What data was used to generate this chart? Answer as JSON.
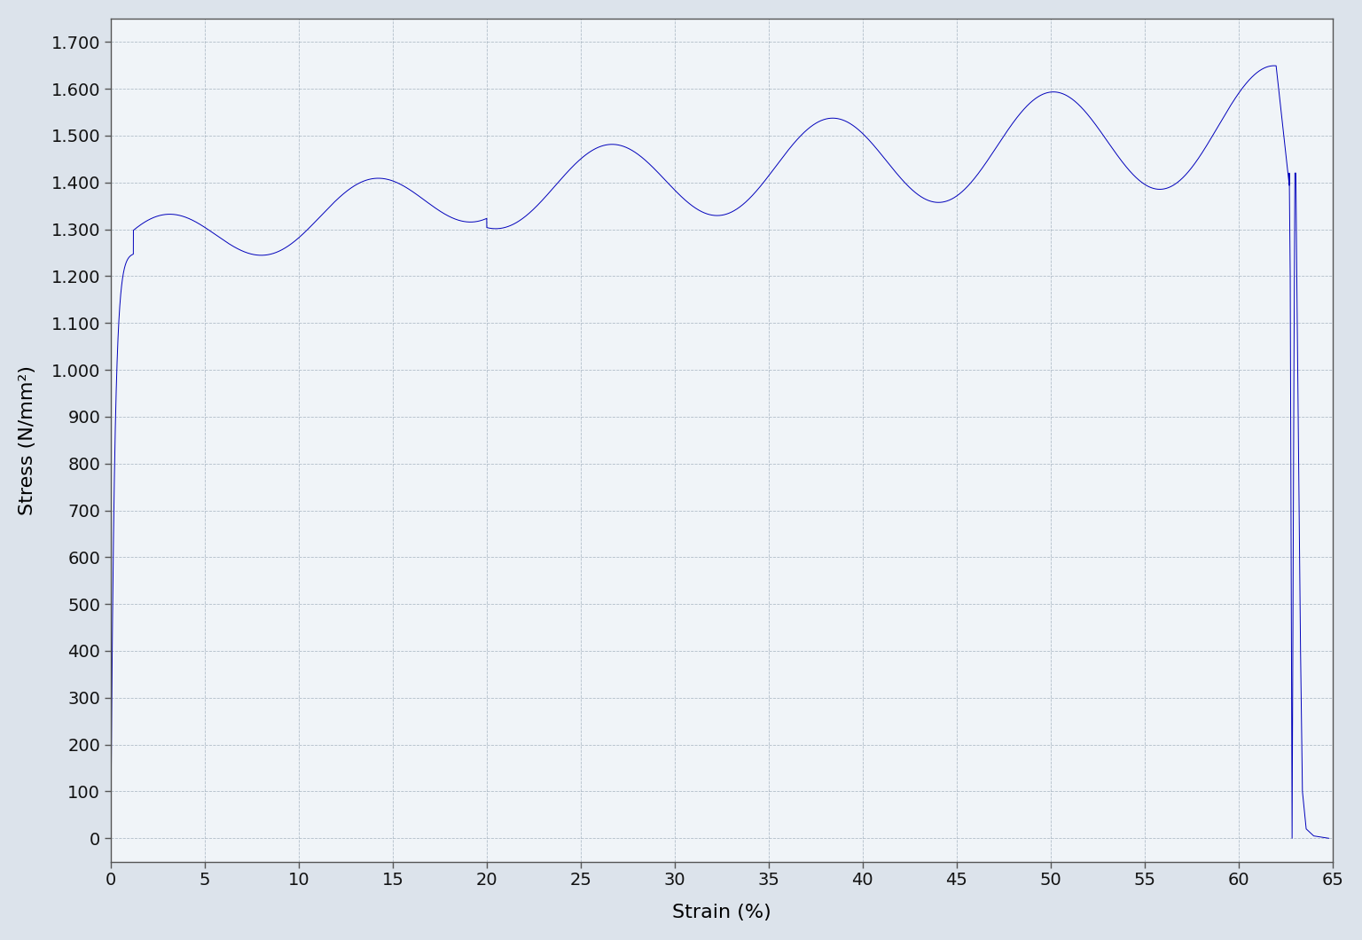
{
  "xlabel": "Strain (%)",
  "ylabel": "Stress (N/mm²)",
  "xlim": [
    0,
    65
  ],
  "ylim": [
    -50,
    1750
  ],
  "xticks": [
    0,
    5,
    10,
    15,
    20,
    25,
    30,
    35,
    40,
    45,
    50,
    55,
    60,
    65
  ],
  "yticks": [
    0,
    100,
    200,
    300,
    400,
    500,
    600,
    700,
    800,
    900,
    1000,
    1100,
    1200,
    1300,
    1400,
    1500,
    1600,
    1700
  ],
  "ytick_labels": [
    "0",
    "100",
    "200",
    "300",
    "400",
    "500",
    "600",
    "700",
    "800",
    "900",
    "1.000",
    "1.100",
    "1.200",
    "1.300",
    "1.400",
    "1.500",
    "1.600",
    "1.700"
  ],
  "line_color": "#0000bb",
  "fig_bg_color": "#dce3eb",
  "plot_bg_color": "#f0f4f8",
  "grid_color": "#8899aa",
  "grid_alpha": 0.6,
  "linewidth": 0.7
}
